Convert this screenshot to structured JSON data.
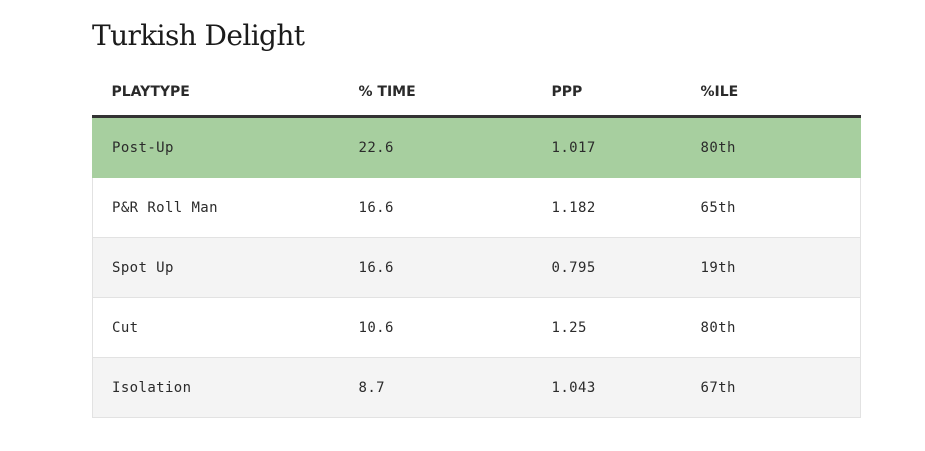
{
  "title": "Turkish Delight",
  "table": {
    "headers": [
      "PLAYTYPE",
      "% TIME",
      "PPP",
      "%ILE"
    ],
    "rows": [
      [
        "Post-Up",
        "22.6",
        "1.017",
        "80th"
      ],
      [
        "P&R Roll Man",
        "16.6",
        "1.182",
        "65th"
      ],
      [
        "Spot Up",
        "16.6",
        "0.795",
        "19th"
      ],
      [
        "Cut",
        "10.6",
        "1.25",
        "80th"
      ],
      [
        "Isolation",
        "8.7",
        "1.043",
        "67th"
      ]
    ],
    "highlight_color": "#a7cf9f",
    "highlighted_row": "Post-Up"
  }
}
